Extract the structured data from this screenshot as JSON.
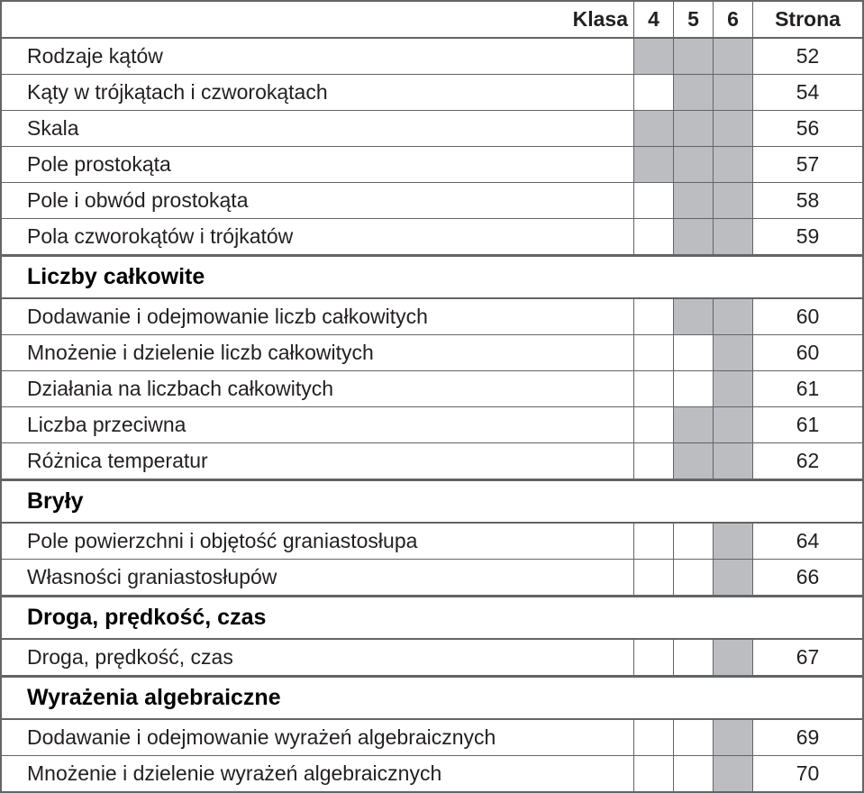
{
  "colors": {
    "border": "#636466",
    "shaded": "#bcbdc0",
    "text": "#231f20",
    "background": "#ffffff"
  },
  "fonts": {
    "body_size": 23,
    "section_size": 25,
    "header_weight": 700
  },
  "header": {
    "klasa": "Klasa",
    "g4": "4",
    "g5": "5",
    "g6": "6",
    "strona": "Strona"
  },
  "rows": [
    {
      "type": "item",
      "title": "Rodzaje kątów",
      "g4": true,
      "g5": true,
      "g6": true,
      "page": "52"
    },
    {
      "type": "item",
      "title": "Kąty w trójkątach i czworokątach",
      "g4": false,
      "g5": true,
      "g6": true,
      "page": "54"
    },
    {
      "type": "item",
      "title": "Skala",
      "g4": true,
      "g5": true,
      "g6": true,
      "page": "56"
    },
    {
      "type": "item",
      "title": "Pole prostokąta",
      "g4": true,
      "g5": true,
      "g6": true,
      "page": "57"
    },
    {
      "type": "item",
      "title": "Pole i obwód prostokąta",
      "g4": false,
      "g5": true,
      "g6": true,
      "page": "58"
    },
    {
      "type": "item",
      "title": "Pola czworokątów i trójkatów",
      "g4": false,
      "g5": true,
      "g6": true,
      "page": "59"
    },
    {
      "type": "section",
      "title": "Liczby całkowite"
    },
    {
      "type": "item",
      "title": "Dodawanie i odejmowanie liczb całkowitych",
      "g4": false,
      "g5": true,
      "g6": true,
      "page": "60"
    },
    {
      "type": "item",
      "title": "Mnożenie i dzielenie liczb całkowitych",
      "g4": false,
      "g5": false,
      "g6": true,
      "page": "60"
    },
    {
      "type": "item",
      "title": "Działania na liczbach całkowitych",
      "g4": false,
      "g5": false,
      "g6": true,
      "page": "61"
    },
    {
      "type": "item",
      "title": "Liczba przeciwna",
      "g4": false,
      "g5": true,
      "g6": true,
      "page": "61"
    },
    {
      "type": "item",
      "title": "Różnica temperatur",
      "g4": false,
      "g5": true,
      "g6": true,
      "page": "62"
    },
    {
      "type": "section",
      "title": "Bryły"
    },
    {
      "type": "item",
      "title": "Pole powierzchni i objętość graniastosłupa",
      "g4": false,
      "g5": false,
      "g6": true,
      "page": "64"
    },
    {
      "type": "item",
      "title": "Własności graniastosłupów",
      "g4": false,
      "g5": false,
      "g6": true,
      "page": "66"
    },
    {
      "type": "section",
      "title": "Droga, prędkość, czas"
    },
    {
      "type": "item",
      "title": "Droga, prędkość, czas",
      "g4": false,
      "g5": false,
      "g6": true,
      "page": "67"
    },
    {
      "type": "section",
      "title": "Wyrażenia algebraiczne"
    },
    {
      "type": "item",
      "title": "Dodawanie i odejmowanie wyrażeń algebraicznych",
      "g4": false,
      "g5": false,
      "g6": true,
      "page": "69"
    },
    {
      "type": "item",
      "title": "Mnożenie i dzielenie wyrażeń algebraicznych",
      "g4": false,
      "g5": false,
      "g6": true,
      "page": "70"
    }
  ]
}
